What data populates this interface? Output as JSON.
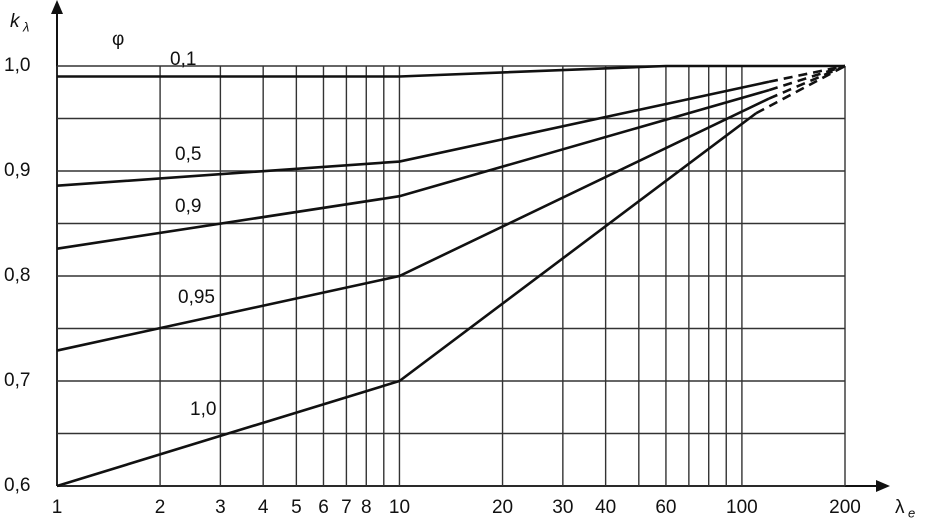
{
  "chart_data": {
    "type": "line",
    "x_label": "λ",
    "x_label_sub": "e",
    "y_label": "k",
    "y_label_sub": "λ",
    "annotation": "φ",
    "log_x": true,
    "grid": true,
    "xlim": [
      1,
      200
    ],
    "ylim": [
      0.6,
      1.0
    ],
    "xticks": [
      1,
      2,
      3,
      4,
      5,
      6,
      7,
      8,
      10,
      20,
      30,
      40,
      60,
      100,
      200
    ],
    "xgrid": [
      1,
      2,
      3,
      4,
      5,
      6,
      7,
      8,
      9,
      10,
      20,
      30,
      40,
      50,
      60,
      70,
      80,
      90,
      100,
      200
    ],
    "yticks": [
      {
        "value": 0.6,
        "label": "0,6"
      },
      {
        "value": 0.7,
        "label": "0,7"
      },
      {
        "value": 0.8,
        "label": "0,8"
      },
      {
        "value": 0.9,
        "label": "0,9"
      },
      {
        "value": 1.0,
        "label": "1,0"
      }
    ],
    "ygrid": [
      0.6,
      0.65,
      0.7,
      0.75,
      0.8,
      0.85,
      0.9,
      0.95,
      1.0
    ],
    "series": [
      {
        "name": "0,1",
        "color": "#111111",
        "x": [
          1,
          10,
          60,
          200
        ],
        "values": [
          0.99,
          0.99,
          1.0,
          1.0
        ],
        "dash_from_x": 200
      },
      {
        "name": "0,5",
        "color": "#111111",
        "x": [
          1,
          10,
          120,
          200
        ],
        "values": [
          0.886,
          0.909,
          0.985,
          1.0
        ],
        "dash_from_x": 120
      },
      {
        "name": "0,9",
        "color": "#111111",
        "x": [
          1,
          10,
          120,
          200
        ],
        "values": [
          0.826,
          0.876,
          0.977,
          1.0
        ],
        "dash_from_x": 120
      },
      {
        "name": "0,95",
        "color": "#111111",
        "x": [
          1,
          10,
          120,
          200
        ],
        "values": [
          0.729,
          0.8,
          0.969,
          1.0
        ],
        "dash_from_x": 120
      },
      {
        "name": "1,0",
        "color": "#111111",
        "x": [
          1,
          10,
          110,
          200
        ],
        "values": [
          0.6,
          0.7,
          0.955,
          1.0
        ],
        "dash_from_x": 110
      }
    ]
  }
}
